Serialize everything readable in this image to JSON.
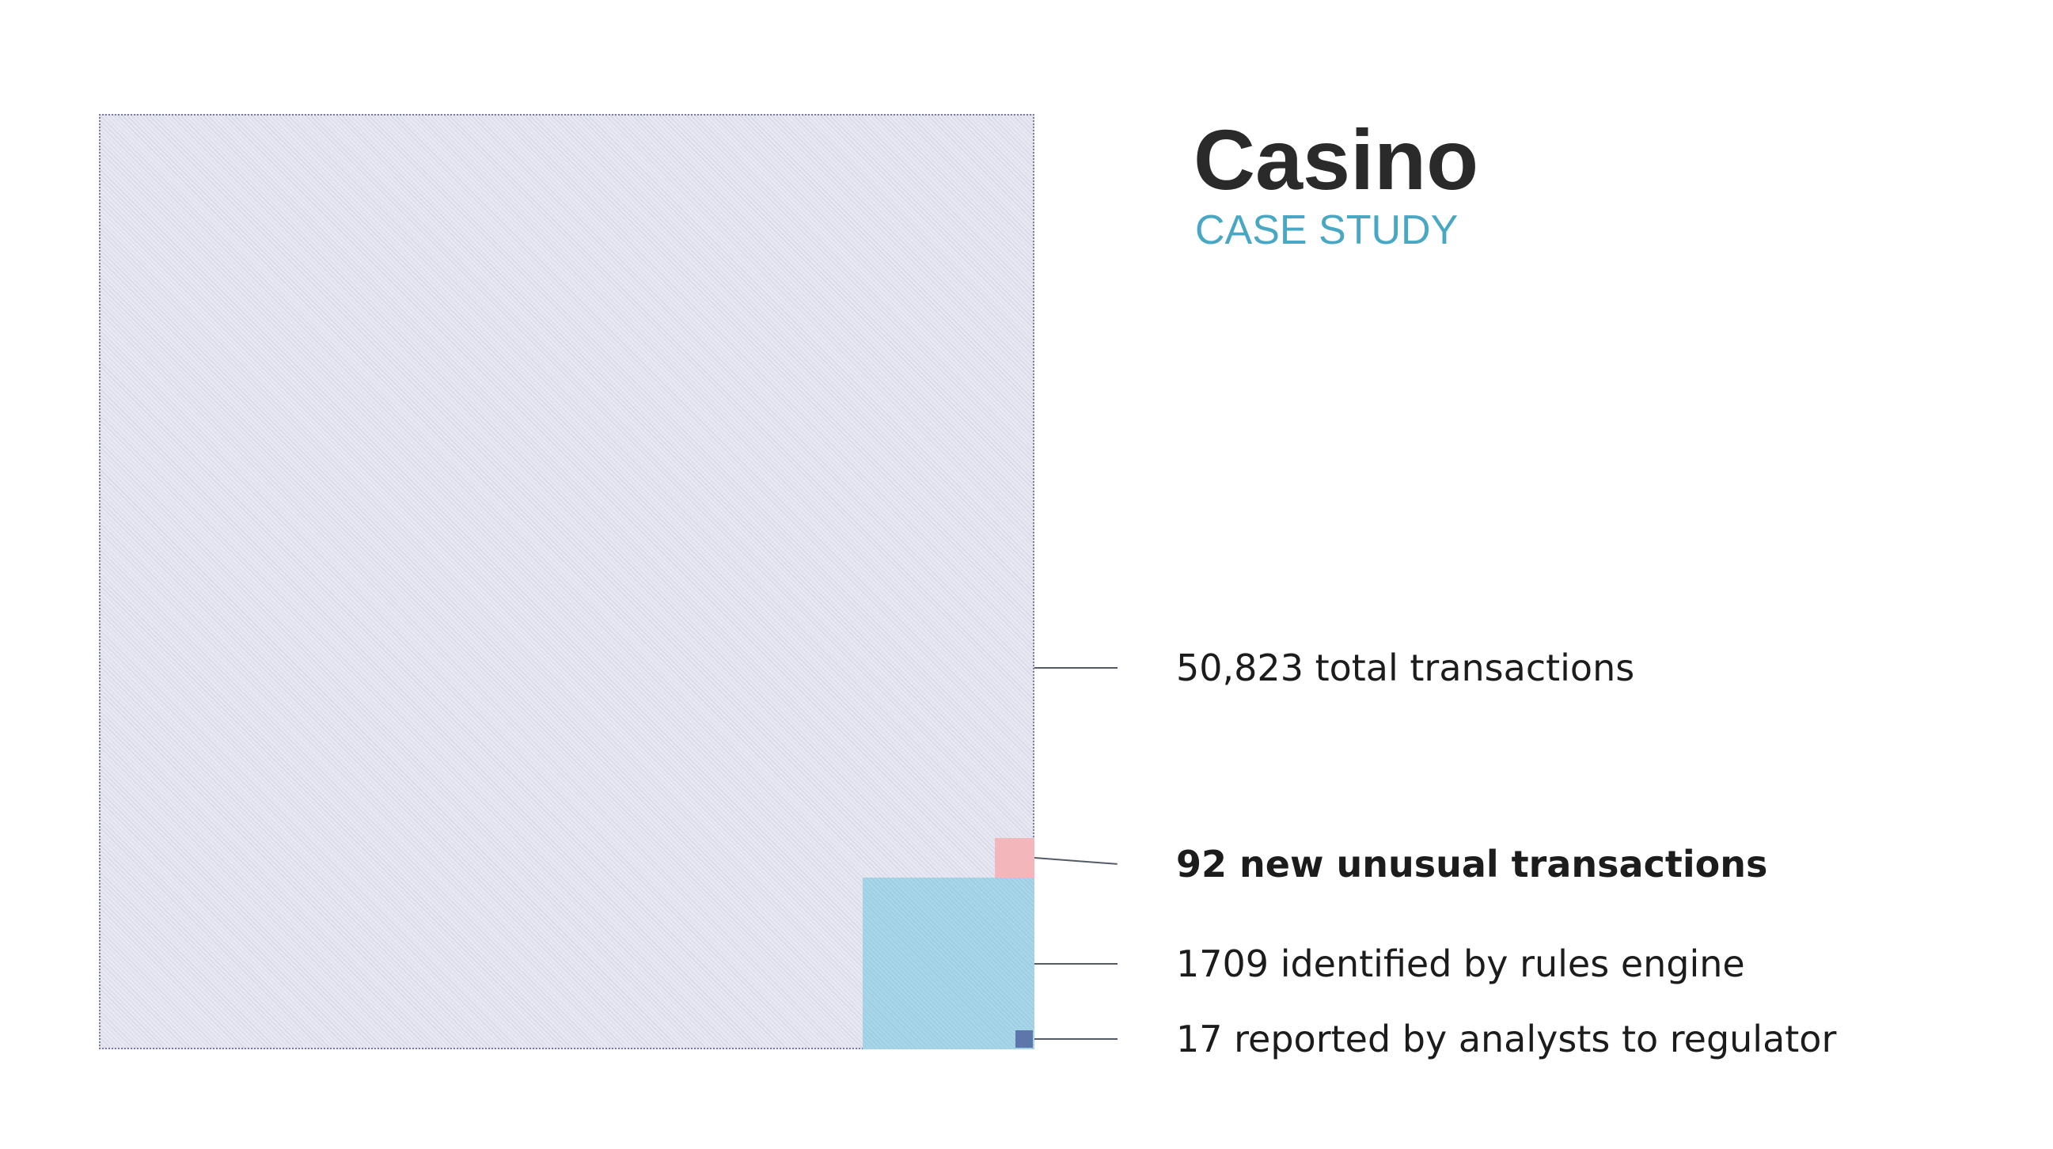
{
  "header": {
    "title": "Casino",
    "subtitle": "CASE STUDY"
  },
  "chart_data": {
    "type": "nested-area-squares",
    "items": [
      {
        "key": "total",
        "value": 50823,
        "label": "50,823 total transactions",
        "color": "#e7e8f1",
        "bold": false
      },
      {
        "key": "new",
        "value": 92,
        "label": "92 new unusual transactions",
        "color": "#f3b6bb",
        "bold": true
      },
      {
        "key": "rules",
        "value": 1709,
        "label": "1709 identified by rules engine",
        "color": "#a8d6e8",
        "bold": false
      },
      {
        "key": "reported",
        "value": 17,
        "label": "17 reported by analysts to regulator",
        "color": "#5e77aa",
        "bold": false
      }
    ]
  }
}
